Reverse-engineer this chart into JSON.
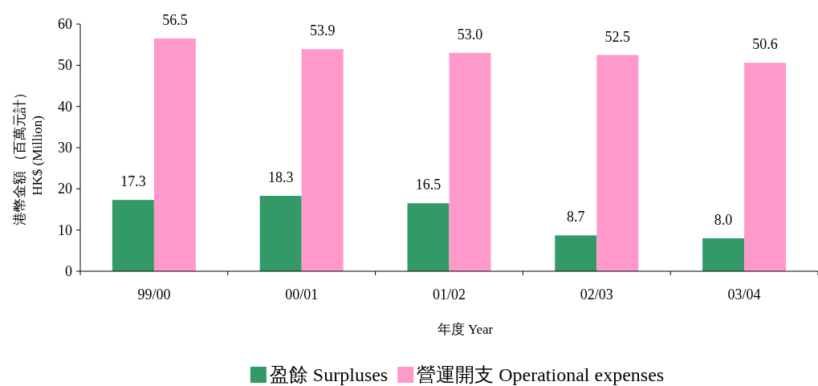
{
  "chart_data": {
    "type": "bar",
    "xlabel": "年度 Year",
    "ylabel": "港幣金額 （百萬元計）\nHK$ (Million)",
    "categories": [
      "99/00",
      "00/01",
      "01/02",
      "02/03",
      "03/04"
    ],
    "series": [
      {
        "name": "盈餘 Surpluses",
        "color": "#339966",
        "values": [
          17.3,
          18.3,
          16.5,
          8.7,
          8.0
        ],
        "value_labels": [
          "17.3",
          "18.3",
          "16.5",
          "8.7",
          "8.0"
        ]
      },
      {
        "name": "營運開支 Operational expenses",
        "color": "#ff99cc",
        "values": [
          56.5,
          53.9,
          53.0,
          52.5,
          50.6
        ],
        "value_labels": [
          "56.5",
          "53.9",
          "53.0",
          "52.5",
          "50.6"
        ]
      }
    ],
    "ylim": [
      0,
      60
    ],
    "yticks": [
      0,
      10,
      20,
      30,
      40,
      50,
      60
    ],
    "grid": false,
    "legend": "bottom"
  }
}
